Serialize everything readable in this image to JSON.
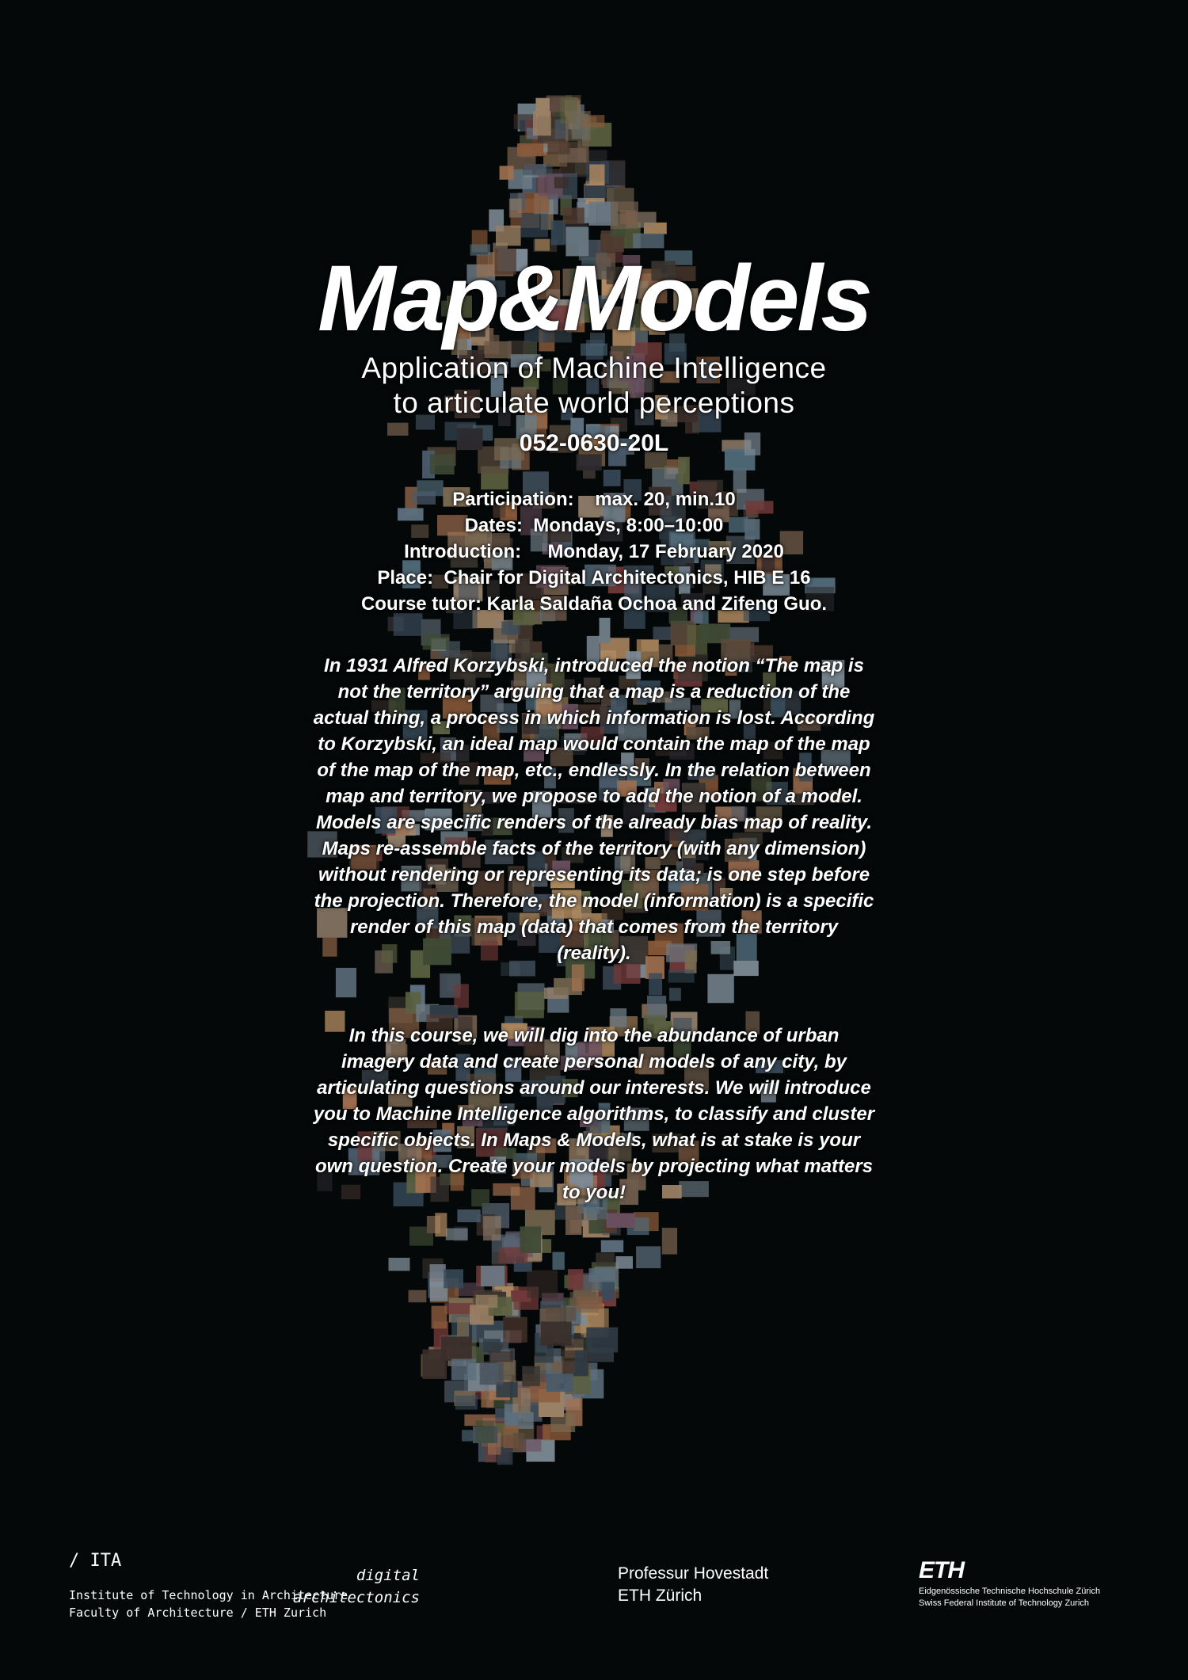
{
  "poster": {
    "title": "Map&Models",
    "subtitle_line1": "Application of Machine Intelligence",
    "subtitle_line2": "to articulate world perceptions",
    "course_code": "052-0630-20L",
    "info": {
      "participation": "Participation:    max. 20, min.10",
      "dates": "Dates:  Mondays, 8:00–10:00",
      "introduction": "Introduction:     Monday, 17 February 2020",
      "place": "Place:  Chair for Digital Architectonics, HIB E 16",
      "tutor": "Course tutor: Karla Saldaña Ochoa and Zifeng Guo."
    },
    "paragraph1": "In 1931 Alfred Korzybski, introduced the notion “The map is not the territory” arguing that a map is a reduction of the actual thing, a process in which information is lost. According to Korzybski, an ideal map would contain the map of the map of the map of the map, etc., endlessly. In the relation between map and territory, we propose to add the notion of a model. Models are specific renders of the already bias map of reality. Maps re-assemble facts of the territory (with any dimension) without rendering or representing its data; is one step before the projection. Therefore, the model (information) is a specific render of this map (data) that comes from the territory (reality).",
    "paragraph2": "In this course, we will dig into the abundance of urban imagery data and create personal models of any city, by articulating questions around our interests. We will introduce you to Machine Intelligence algorithms, to classify and cluster specific objects. In Maps & Models, what is at stake is your own question. Create your models by projecting what matters to you!"
  },
  "footer": {
    "ita_logo": "/ ITA",
    "ita_line1": "Institute of Technology in Architecture",
    "ita_line2": "Faculty of Architecture / ETH Zurich",
    "da_line1": "digital",
    "da_line2": "architectonics",
    "prof_line1": "Professur Hovestadt",
    "prof_line2": "ETH Zürich",
    "eth_logo": "ETH",
    "eth_line1": "Eidgenössische Technische Hochschule Zürich",
    "eth_line2": "Swiss Federal Institute of Technology Zurich"
  },
  "colors": {
    "background": "#040808",
    "text": "#ffffff"
  }
}
